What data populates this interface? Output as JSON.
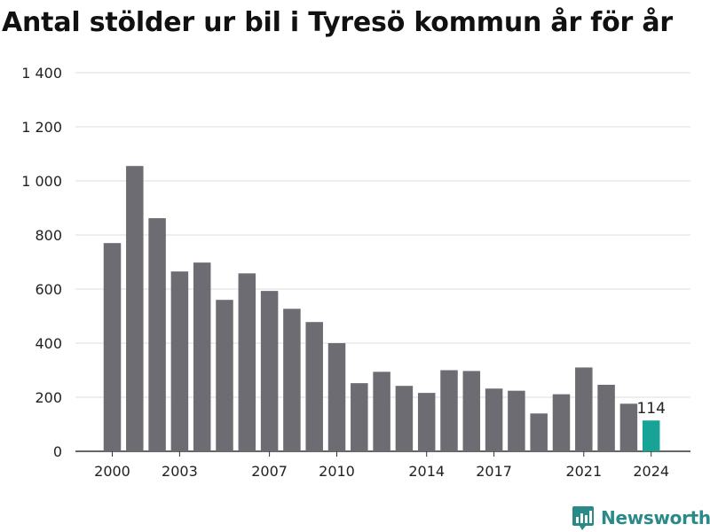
{
  "title": "Antal stölder ur bil i Tyresö kommun år för år",
  "brand": {
    "name": "Newsworthy",
    "icon": "newsworthy-chart-icon"
  },
  "colors": {
    "bar": "#6d6c72",
    "highlight": "#17a396",
    "grid": "#dddddd",
    "axis": "#333333",
    "brand": "#2a8a87"
  },
  "chart_data": {
    "type": "bar",
    "title": "Antal stölder ur bil i Tyresö kommun år för år",
    "categories": [
      "2000",
      "2001",
      "2002",
      "2003",
      "2004",
      "2005",
      "2006",
      "2007",
      "2008",
      "2009",
      "2010",
      "2011",
      "2012",
      "2013",
      "2014",
      "2015",
      "2016",
      "2017",
      "2018",
      "2019",
      "2020",
      "2021",
      "2022",
      "2023",
      "2024"
    ],
    "values": [
      770,
      1055,
      862,
      665,
      698,
      560,
      658,
      593,
      527,
      478,
      400,
      252,
      294,
      242,
      216,
      300,
      297,
      232,
      224,
      140,
      211,
      310,
      246,
      176,
      114
    ],
    "highlight_category": "2024",
    "data_labels": [
      {
        "category": "2024",
        "text": "114"
      }
    ],
    "x_tick_labels": [
      "2000",
      "2003",
      "2007",
      "2010",
      "2014",
      "2017",
      "2021",
      "2024"
    ],
    "y_ticks": [
      0,
      200,
      400,
      600,
      800,
      1000,
      1200,
      1400
    ],
    "y_tick_labels": [
      "0",
      "200",
      "400",
      "600",
      "800",
      "1 000",
      "1 200",
      "1 400"
    ],
    "ylim": [
      0,
      1400
    ],
    "xlabel": "",
    "ylabel": "",
    "grid": true,
    "legend": "none"
  }
}
